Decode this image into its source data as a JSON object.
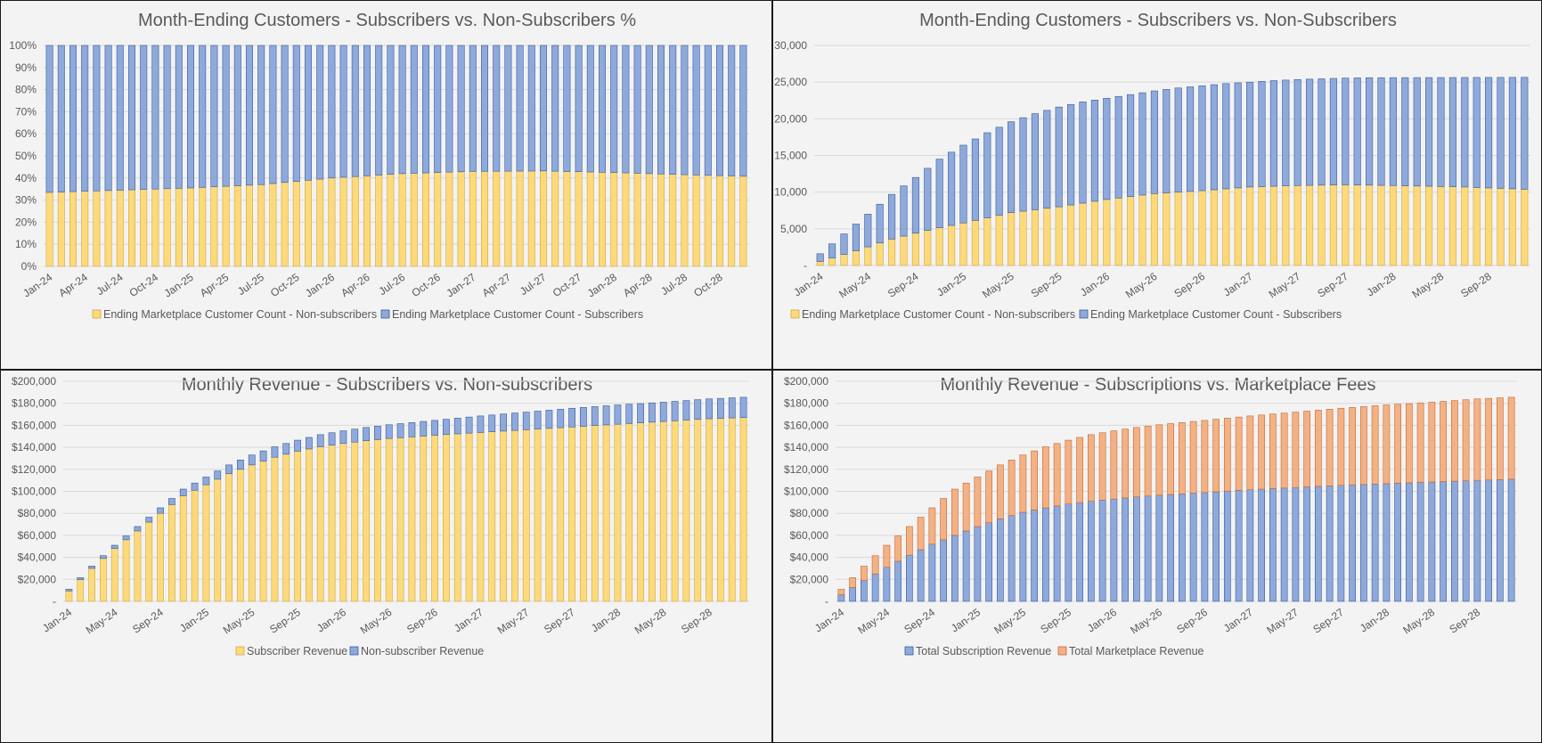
{
  "colors": {
    "yellow": "#ffd97a",
    "yellow_edge": "#c9a94a",
    "blue": "#8ea9db",
    "blue_edge": "#3a5b9a",
    "orange": "#f4b183",
    "orange_edge": "#c06a3a"
  },
  "chart_data": [
    {
      "type": "bar",
      "stacked": true,
      "title": "Month-Ending Customers - Subscribers vs. Non-Subscribers %",
      "x_range": [
        "Jan-24",
        "Dec-28"
      ],
      "x_tick_labels": [
        "Jan-24",
        "Apr-24",
        "Jul-24",
        "Oct-24",
        "Jan-25",
        "Apr-25",
        "Jul-25",
        "Oct-25",
        "Jan-26",
        "Apr-26",
        "Jul-26",
        "Oct-26",
        "Jan-27",
        "Apr-27",
        "Jul-27",
        "Oct-27",
        "Jan-28",
        "Apr-28",
        "Jul-28",
        "Oct-28"
      ],
      "y_tick_labels": [
        "0%",
        "10%",
        "20%",
        "30%",
        "40%",
        "50%",
        "60%",
        "70%",
        "80%",
        "90%",
        "100%"
      ],
      "ylim": [
        0,
        100
      ],
      "legend_position": "bottom",
      "series": [
        {
          "name": "Ending Marketplace Customer Count - Non-subscribers",
          "color_key": "yellow",
          "anchors": [
            [
              0,
              33.5
            ],
            [
              6,
              34.5
            ],
            [
              12,
              35.5
            ],
            [
              18,
              37
            ],
            [
              24,
              40
            ],
            [
              30,
              42
            ],
            [
              36,
              43
            ],
            [
              42,
              43.2
            ],
            [
              48,
              42.5
            ],
            [
              54,
              41.5
            ],
            [
              59,
              40.8
            ]
          ]
        },
        {
          "name": "Ending Marketplace Customer Count - Subscribers",
          "color_key": "blue",
          "remainder_of": 100
        }
      ]
    },
    {
      "type": "bar",
      "stacked": true,
      "title": "Month-Ending Customers - Subscribers vs. Non-Subscribers",
      "x_range": [
        "Jan-24",
        "Dec-28"
      ],
      "x_tick_labels": [
        "Jan-24",
        "May-24",
        "Sep-24",
        "Jan-25",
        "May-25",
        "Sep-25",
        "Jan-26",
        "May-26",
        "Sep-26",
        "Jan-27",
        "May-27",
        "Sep-27",
        "Jan-28",
        "May-28",
        "Sep-28"
      ],
      "y_tick_labels": [
        "-",
        "5,000",
        "10,000",
        "15,000",
        "20,000",
        "25,000",
        "30,000"
      ],
      "ylim": [
        0,
        30000
      ],
      "legend_position": "bottom",
      "series": [
        {
          "name": "Ending Marketplace Customer Count - Non-subscribers",
          "color_key": "yellow",
          "anchors": [
            [
              0,
              550
            ],
            [
              3,
              2000
            ],
            [
              6,
              3600
            ],
            [
              9,
              4800
            ],
            [
              12,
              5800
            ],
            [
              16,
              7200
            ],
            [
              20,
              8000
            ],
            [
              24,
              9000
            ],
            [
              28,
              9800
            ],
            [
              32,
              10200
            ],
            [
              36,
              10700
            ],
            [
              40,
              10900
            ],
            [
              44,
              11000
            ],
            [
              48,
              10900
            ],
            [
              54,
              10700
            ],
            [
              59,
              10400
            ]
          ]
        },
        {
          "name": "Ending Marketplace Customer Count - Subscribers",
          "color_key": "blue",
          "total_anchors": [
            [
              0,
              1600
            ],
            [
              2,
              4300
            ],
            [
              4,
              7000
            ],
            [
              6,
              9700
            ],
            [
              8,
              12000
            ],
            [
              10,
              14500
            ],
            [
              12,
              16400
            ],
            [
              14,
              18100
            ],
            [
              16,
              19600
            ],
            [
              18,
              20700
            ],
            [
              20,
              21600
            ],
            [
              22,
              22300
            ],
            [
              24,
              22800
            ],
            [
              26,
              23300
            ],
            [
              28,
              23800
            ],
            [
              30,
              24200
            ],
            [
              32,
              24500
            ],
            [
              34,
              24800
            ],
            [
              36,
              25000
            ],
            [
              38,
              25200
            ],
            [
              40,
              25350
            ],
            [
              42,
              25450
            ],
            [
              44,
              25550
            ],
            [
              46,
              25600
            ],
            [
              59,
              25650
            ]
          ]
        }
      ]
    },
    {
      "type": "bar",
      "stacked": true,
      "title": "Monthly Revenue - Subscribers vs. Non-subscribers",
      "x_range": [
        "Jan-24",
        "Dec-28"
      ],
      "x_tick_labels": [
        "Jan-24",
        "May-24",
        "Sep-24",
        "Jan-25",
        "May-25",
        "Sep-25",
        "Jan-26",
        "May-26",
        "Sep-26",
        "Jan-27",
        "May-27",
        "Sep-27",
        "Jan-28",
        "May-28",
        "Sep-28"
      ],
      "y_tick_labels": [
        "-",
        "$20,000",
        "$40,000",
        "$60,000",
        "$80,000",
        "$100,000",
        "$120,000",
        "$140,000",
        "$160,000",
        "$180,000",
        "$200,000"
      ],
      "ylim": [
        0,
        200000
      ],
      "legend_position": "bottom",
      "series": [
        {
          "name": "Subscriber Revenue",
          "color_key": "yellow",
          "anchors": [
            [
              0,
              9500
            ],
            [
              2,
              30000
            ],
            [
              4,
              48000
            ],
            [
              6,
              64000
            ],
            [
              8,
              80000
            ],
            [
              10,
              96000
            ],
            [
              12,
              106000
            ],
            [
              14,
              116000
            ],
            [
              16,
              124000
            ],
            [
              18,
              131000
            ],
            [
              20,
              136500
            ],
            [
              22,
              140500
            ],
            [
              24,
              143500
            ],
            [
              26,
              146000
            ],
            [
              28,
              148000
            ],
            [
              32,
              151000
            ],
            [
              36,
              153500
            ],
            [
              40,
              156000
            ],
            [
              44,
              158500
            ],
            [
              48,
              161000
            ],
            [
              52,
              163500
            ],
            [
              56,
              166000
            ],
            [
              59,
              167000
            ]
          ]
        },
        {
          "name": "Non-subscriber Revenue",
          "color_key": "blue",
          "total_anchors": [
            [
              0,
              11000
            ],
            [
              2,
              32000
            ],
            [
              4,
              51000
            ],
            [
              6,
              68000
            ],
            [
              8,
              85000
            ],
            [
              10,
              102000
            ],
            [
              12,
              113000
            ],
            [
              14,
              124000
            ],
            [
              16,
              133000
            ],
            [
              18,
              140500
            ],
            [
              20,
              146500
            ],
            [
              22,
              151500
            ],
            [
              24,
              155000
            ],
            [
              26,
              158000
            ],
            [
              28,
              160500
            ],
            [
              32,
              164500
            ],
            [
              36,
              168500
            ],
            [
              40,
              172000
            ],
            [
              44,
              175500
            ],
            [
              48,
              178500
            ],
            [
              52,
              181000
            ],
            [
              56,
              184000
            ],
            [
              59,
              185500
            ]
          ]
        }
      ]
    },
    {
      "type": "bar",
      "stacked": true,
      "title": "Monthly Revenue - Subscriptions vs. Marketplace Fees",
      "x_range": [
        "Jan-24",
        "Dec-28"
      ],
      "x_tick_labels": [
        "Jan-24",
        "May-24",
        "Sep-24",
        "Jan-25",
        "May-25",
        "Sep-25",
        "Jan-26",
        "May-26",
        "Sep-26",
        "Jan-27",
        "May-27",
        "Sep-27",
        "Jan-28",
        "May-28",
        "Sep-28"
      ],
      "y_tick_labels": [
        "-",
        "$20,000",
        "$40,000",
        "$60,000",
        "$80,000",
        "$100,000",
        "$120,000",
        "$140,000",
        "$160,000",
        "$180,000",
        "$200,000"
      ],
      "ylim": [
        0,
        200000
      ],
      "legend_position": "bottom",
      "series": [
        {
          "name": "Total Subscription Revenue",
          "color_key": "blue",
          "anchors": [
            [
              0,
              6000
            ],
            [
              2,
              19000
            ],
            [
              4,
              31000
            ],
            [
              6,
              42000
            ],
            [
              8,
              52000
            ],
            [
              10,
              60000
            ],
            [
              12,
              68000
            ],
            [
              14,
              75000
            ],
            [
              16,
              81000
            ],
            [
              18,
              85000
            ],
            [
              20,
              88500
            ],
            [
              22,
              91000
            ],
            [
              24,
              93000
            ],
            [
              26,
              95000
            ],
            [
              28,
              96500
            ],
            [
              32,
              99000
            ],
            [
              36,
              101500
            ],
            [
              40,
              103500
            ],
            [
              44,
              105500
            ],
            [
              48,
              107000
            ],
            [
              52,
              108500
            ],
            [
              56,
              110000
            ],
            [
              59,
              111000
            ]
          ]
        },
        {
          "name": "Total Marketplace Revenue",
          "color_key": "orange",
          "total_anchors": [
            [
              0,
              11000
            ],
            [
              2,
              32000
            ],
            [
              4,
              51000
            ],
            [
              6,
              68000
            ],
            [
              8,
              85000
            ],
            [
              10,
              102000
            ],
            [
              12,
              113000
            ],
            [
              14,
              124000
            ],
            [
              16,
              133000
            ],
            [
              18,
              140500
            ],
            [
              20,
              146500
            ],
            [
              22,
              151500
            ],
            [
              24,
              155000
            ],
            [
              26,
              158000
            ],
            [
              28,
              160500
            ],
            [
              32,
              164500
            ],
            [
              36,
              168500
            ],
            [
              40,
              172000
            ],
            [
              44,
              175500
            ],
            [
              48,
              178500
            ],
            [
              52,
              181000
            ],
            [
              56,
              184000
            ],
            [
              59,
              185500
            ]
          ]
        }
      ]
    }
  ]
}
